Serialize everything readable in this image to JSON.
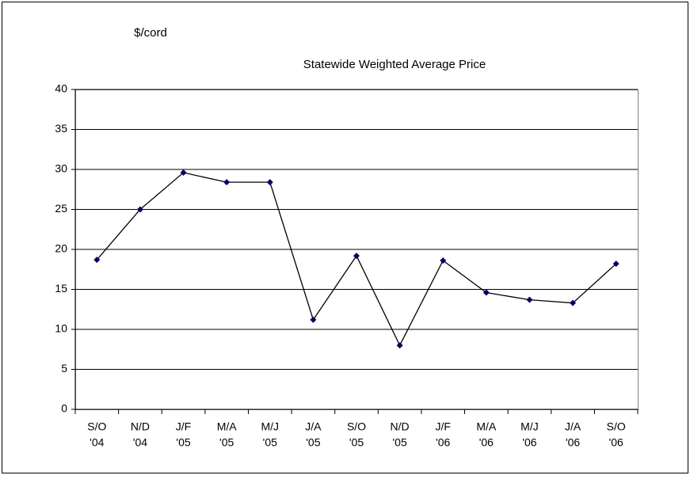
{
  "chart_data": {
    "type": "line",
    "title": "Statewide Weighted Average Price",
    "ylabel": "$/cord",
    "categories": [
      [
        "S/O",
        "'04"
      ],
      [
        "N/D",
        "'04"
      ],
      [
        "J/F",
        "'05"
      ],
      [
        "M/A",
        "'05"
      ],
      [
        "M/J",
        "'05"
      ],
      [
        "J/A",
        "'05"
      ],
      [
        "S/O",
        "'05"
      ],
      [
        "N/D",
        "'05"
      ],
      [
        "J/F",
        "'06"
      ],
      [
        "M/A",
        "'06"
      ],
      [
        "M/J",
        "'06"
      ],
      [
        "J/A",
        "'06"
      ],
      [
        "S/O",
        "'06"
      ]
    ],
    "values": [
      18.7,
      25.0,
      29.6,
      28.4,
      28.4,
      11.2,
      19.2,
      8.0,
      18.6,
      14.6,
      13.7,
      13.3,
      18.2
    ],
    "color": "#000000",
    "marker_color": "#000066",
    "ylim": [
      0,
      40
    ],
    "yticks": [
      0,
      5,
      10,
      15,
      20,
      25,
      30,
      35,
      40
    ],
    "grid": true
  }
}
